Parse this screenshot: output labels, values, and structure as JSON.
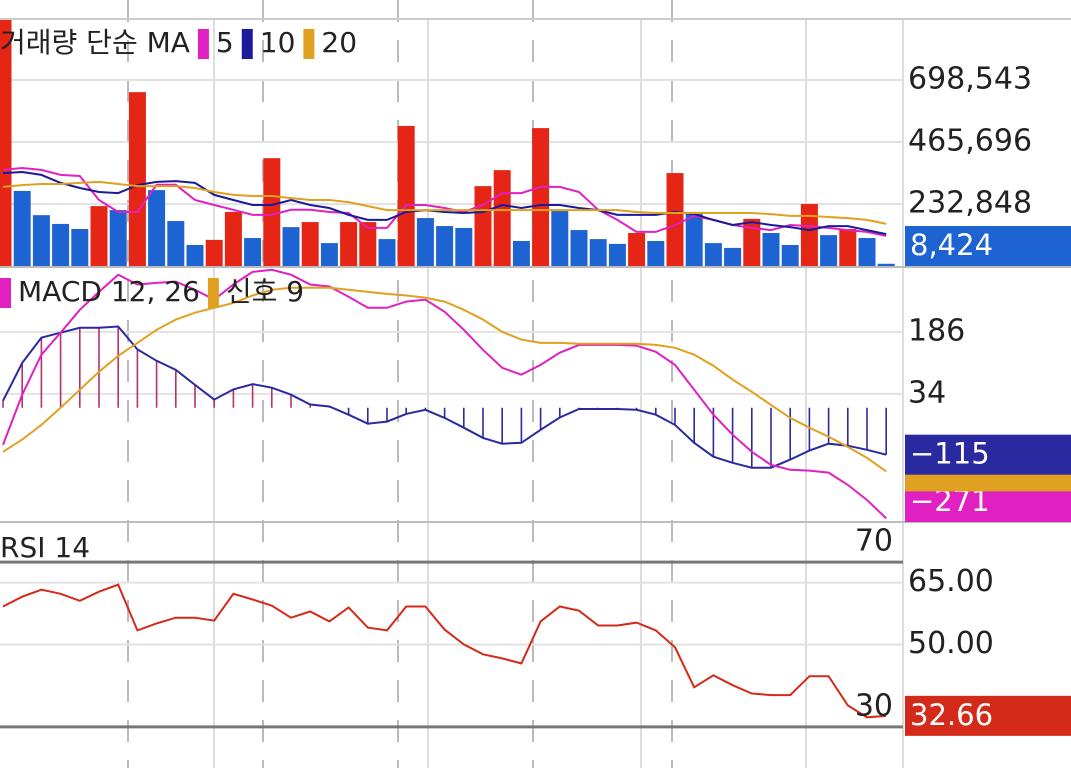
{
  "chart_data": [
    {
      "type": "bar",
      "title": "거래량 단순 MA",
      "values": [
        924000,
        282000,
        191000,
        158000,
        139000,
        225000,
        210000,
        653000,
        285000,
        169000,
        79000,
        98000,
        203000,
        105000,
        405000,
        146000,
        165000,
        86000,
        165000,
        165000,
        101000,
        526000,
        180000,
        150000,
        143000,
        300000,
        360000,
        94000,
        518000,
        207000,
        135000,
        101000,
        83000,
        124000,
        94000,
        349000,
        203000,
        86000,
        68000,
        177000,
        124000,
        79000,
        233000,
        116000,
        139000,
        105000,
        8424
      ],
      "colors": [
        "#e52515",
        "#1e63d2",
        "#1e63d2",
        "#1e63d2",
        "#1e63d2",
        "#e52515",
        "#1e63d2",
        "#e52515",
        "#1e63d2",
        "#1e63d2",
        "#1e63d2",
        "#e52515",
        "#e52515",
        "#1e63d2",
        "#e52515",
        "#1e63d2",
        "#e52515",
        "#1e63d2",
        "#e52515",
        "#e52515",
        "#1e63d2",
        "#e52515",
        "#1e63d2",
        "#1e63d2",
        "#1e63d2",
        "#e52515",
        "#e52515",
        "#1e63d2",
        "#e52515",
        "#1e63d2",
        "#1e63d2",
        "#1e63d2",
        "#1e63d2",
        "#e52515",
        "#1e63d2",
        "#e52515",
        "#1e63d2",
        "#1e63d2",
        "#1e63d2",
        "#e52515",
        "#1e63d2",
        "#1e63d2",
        "#e52515",
        "#1e63d2",
        "#e52515",
        "#1e63d2",
        "#1e63d2"
      ],
      "last_label": "8,424",
      "series": [
        {
          "name": "5",
          "color": "#e020c0",
          "values": [
            361000,
            368000,
            361000,
            342000,
            338000,
            248000,
            203000,
            203000,
            305000,
            305000,
            248000,
            229000,
            211000,
            192000,
            192000,
            211000,
            211000,
            203000,
            199000,
            143000,
            143000,
            229000,
            229000,
            218000,
            203000,
            229000,
            274000,
            274000,
            297000,
            297000,
            278000,
            211000,
            173000,
            128000,
            128000,
            154000,
            188000,
            173000,
            154000,
            143000,
            135000,
            154000,
            150000,
            143000,
            135000,
            128000,
            113000
          ]
        },
        {
          "name": "10",
          "color": "#1a1a9a",
          "values": [
            349000,
            353000,
            342000,
            312000,
            293000,
            278000,
            274000,
            304000,
            316000,
            319000,
            312000,
            267000,
            248000,
            229000,
            229000,
            248000,
            229000,
            218000,
            192000,
            173000,
            173000,
            203000,
            210000,
            203000,
            199000,
            203000,
            229000,
            218000,
            229000,
            229000,
            218000,
            210000,
            192000,
            192000,
            192000,
            203000,
            195000,
            173000,
            154000,
            165000,
            154000,
            146000,
            135000,
            150000,
            150000,
            135000,
            120000
          ]
        },
        {
          "name": "20",
          "color": "#e0a020",
          "values": [
            297000,
            304000,
            308000,
            308000,
            312000,
            316000,
            308000,
            300000,
            300000,
            300000,
            293000,
            278000,
            267000,
            263000,
            263000,
            255000,
            248000,
            248000,
            240000,
            225000,
            210000,
            210000,
            210000,
            210000,
            210000,
            210000,
            210000,
            210000,
            210000,
            210000,
            210000,
            210000,
            210000,
            203000,
            199000,
            199000,
            199000,
            199000,
            199000,
            199000,
            195000,
            188000,
            188000,
            184000,
            180000,
            173000,
            158000
          ]
        }
      ],
      "ylim": [
        0,
        924000
      ],
      "yticks": [
        {
          "value": 232848,
          "label": "232,848"
        },
        {
          "value": 465696,
          "label": "465,696"
        },
        {
          "value": 698543,
          "label": "698,543"
        }
      ]
    },
    {
      "type": "line",
      "series": [
        {
          "name": "MACD 12, 26",
          "color": "#e020c0",
          "last_label": "−271",
          "values": [
            -91,
            32,
            130,
            184,
            240,
            284,
            326,
            302,
            306,
            309,
            289,
            265,
            302,
            333,
            338,
            326,
            302,
            297,
            272,
            245,
            245,
            260,
            265,
            235,
            191,
            142,
            98,
            81,
            105,
            135,
            154,
            154,
            154,
            152,
            137,
            105,
            44,
            -17,
            -66,
            -108,
            -140,
            -152,
            -154,
            -159,
            -189,
            -226,
            -271
          ]
        },
        {
          "name": "신호 9",
          "color": "#e0a020",
          "values": [
            -108,
            -78,
            -42,
            0,
            44,
            88,
            127,
            159,
            191,
            216,
            233,
            245,
            257,
            275,
            289,
            294,
            294,
            294,
            289,
            284,
            279,
            275,
            270,
            260,
            240,
            216,
            186,
            167,
            159,
            159,
            157,
            157,
            157,
            157,
            154,
            147,
            130,
            103,
            69,
            39,
            7,
            -25,
            -49,
            -71,
            -96,
            -123,
            -156
          ]
        }
      ],
      "histogram": {
        "color": "#2a2aa0",
        "up_color": "#b8306a",
        "last_label": "−115",
        "values": [
          17,
          110,
          172,
          184,
          196,
          196,
          199,
          143,
          115,
          93,
          56,
          20,
          45,
          58,
          49,
          32,
          8,
          3,
          -17,
          -39,
          -34,
          -15,
          -5,
          -25,
          -49,
          -74,
          -88,
          -86,
          -54,
          -24,
          -3,
          -3,
          -3,
          -5,
          -17,
          -42,
          -86,
          -120,
          -135,
          -147,
          -147,
          -127,
          -105,
          -88,
          -93,
          -103,
          -115
        ]
      },
      "ylim": [
        -280,
        340
      ],
      "yticks": [
        186,
        34
      ]
    },
    {
      "type": "line",
      "title": "RSI 14",
      "series": [
        {
          "color": "#d42a1a",
          "last_label": "32.66",
          "values": [
            59.2,
            61.6,
            63.3,
            62.3,
            60.6,
            62.8,
            64.5,
            53.4,
            55.1,
            56.5,
            56.5,
            55.8,
            62.3,
            60.9,
            59.4,
            56.5,
            58.0,
            55.6,
            59.0,
            54.1,
            53.4,
            59.2,
            59.2,
            53.6,
            50.0,
            47.6,
            46.6,
            45.4,
            55.6,
            59.2,
            58.2,
            54.6,
            54.6,
            55.3,
            53.4,
            49.3,
            39.6,
            42.5,
            40.1,
            38.1,
            37.7,
            37.7,
            42.3,
            42.3,
            35.2,
            32.3,
            32.66
          ]
        }
      ],
      "ylim": [
        20,
        79
      ],
      "yticks": [
        {
          "value": 65,
          "label": "65.00"
        },
        {
          "value": 50,
          "label": "50.00"
        }
      ],
      "hlines": [
        70,
        30
      ]
    }
  ]
}
